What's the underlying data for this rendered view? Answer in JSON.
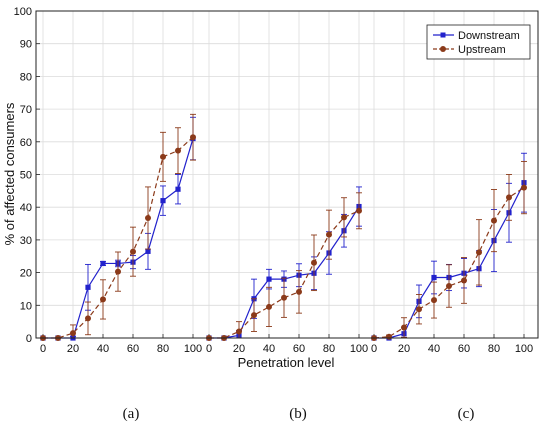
{
  "chart_data": {
    "type": "line",
    "xlabel": "Penetration level",
    "ylabel": "% of affected consumers",
    "ylim": [
      0,
      100
    ],
    "yticks": [
      0,
      10,
      20,
      30,
      40,
      50,
      60,
      70,
      80,
      90,
      100
    ],
    "grid": true,
    "legend_position": "top-right",
    "panel_labels": [
      "(a)",
      "(b)",
      "(c)"
    ],
    "x_tick_labels": [
      "0",
      "20",
      "40",
      "60",
      "80",
      "100"
    ],
    "series_style": [
      {
        "color": "#2222cc",
        "marker": "square",
        "dash": "solid"
      },
      {
        "color": "#8b3a1a",
        "marker": "circle",
        "dash": "dashed"
      }
    ],
    "panels": [
      {
        "label": "(a)",
        "x": [
          0,
          10,
          20,
          30,
          40,
          50,
          60,
          70,
          80,
          90,
          100
        ],
        "series": [
          {
            "name": "Downstream",
            "values": [
              0,
              0,
              0,
              15.5,
              22.8,
              22.8,
              23.2,
              26.5,
              42,
              45.5,
              61
            ],
            "err": [
              0,
              0,
              0.5,
              7,
              0.6,
              1,
              2,
              5.5,
              4.5,
              4.5,
              6.5
            ]
          },
          {
            "name": "Upstream",
            "values": [
              0,
              0,
              1.5,
              6,
              11.8,
              20.3,
              26.4,
              36.7,
              55.4,
              57.3,
              61.4
            ],
            "err": [
              0,
              0,
              2.5,
              5,
              6,
              6,
              7.5,
              9.5,
              7.5,
              7,
              7
            ]
          }
        ]
      },
      {
        "label": "(b)",
        "x": [
          0,
          10,
          20,
          30,
          40,
          50,
          60,
          70,
          80,
          90,
          100
        ],
        "series": [
          {
            "name": "Downstream",
            "values": [
              0,
              0,
              0.8,
              12,
              18,
              18,
              19.2,
              19.8,
              26,
              32.8,
              40.2
            ],
            "err": [
              0,
              0,
              1.5,
              6,
              3,
              2.5,
              3.5,
              5,
              6.5,
              5,
              6
            ]
          },
          {
            "name": "Upstream",
            "values": [
              0,
              0,
              2,
              7,
              9.5,
              12.3,
              14.1,
              23,
              31.6,
              36.9,
              38.9
            ],
            "err": [
              0,
              0,
              3,
              5,
              6,
              6,
              6.5,
              8.5,
              7.5,
              6,
              5.5
            ]
          }
        ]
      },
      {
        "label": "(c)",
        "x": [
          0,
          10,
          20,
          30,
          40,
          50,
          60,
          70,
          80,
          90,
          100
        ],
        "series": [
          {
            "name": "Downstream",
            "values": [
              0,
              0,
              1.3,
              11.2,
              18.5,
              18.5,
              19.8,
              21.2,
              29.8,
              38.3,
              47.5
            ],
            "err": [
              0,
              0,
              1.8,
              5,
              5,
              4,
              4.5,
              5.5,
              9.5,
              9,
              9
            ]
          },
          {
            "name": "Upstream",
            "values": [
              0,
              0.4,
              3.2,
              8.8,
              11.6,
              15.9,
              17.6,
              26.2,
              35.9,
              43,
              46
            ],
            "err": [
              0,
              0.5,
              3,
              4.5,
              5.5,
              6.5,
              7,
              10,
              9.5,
              7,
              8
            ]
          }
        ]
      }
    ]
  }
}
